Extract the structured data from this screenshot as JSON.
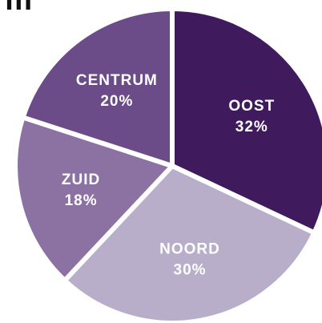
{
  "chart_data": {
    "type": "pie",
    "title": "m",
    "categories": [
      "OOST",
      "NOORD",
      "ZUID",
      "CENTRUM"
    ],
    "values": [
      32,
      30,
      18,
      20
    ],
    "value_labels": [
      "32%",
      "30%",
      "18%",
      "20%"
    ],
    "colors": [
      "#3f1b5e",
      "#b8aec9",
      "#8c72a3",
      "#6b4c88"
    ]
  }
}
